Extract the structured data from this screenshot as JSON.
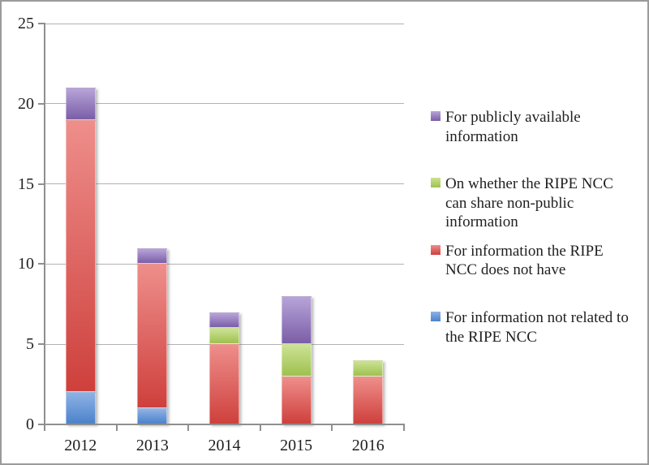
{
  "chart_data": {
    "type": "bar",
    "variant": "stacked-column",
    "title": "",
    "xlabel": "",
    "ylabel": "",
    "categories": [
      "2012",
      "2013",
      "2014",
      "2015",
      "2016"
    ],
    "series": [
      {
        "name": "For information not related to the RIPE NCC",
        "values": [
          2,
          1,
          0,
          0,
          0
        ],
        "color_top": "#8FB2E5",
        "color_bottom": "#4B82CA"
      },
      {
        "name": "For information the RIPE NCC does not have",
        "values": [
          17,
          9,
          5,
          3,
          3
        ],
        "color_top": "#EE8E8B",
        "color_bottom": "#CE403C"
      },
      {
        "name": "On whether the RIPE NCC can share non-public information",
        "values": [
          0,
          0,
          1,
          2,
          1
        ],
        "color_top": "#CCE295",
        "color_bottom": "#9EC14E"
      },
      {
        "name": "For publicly available information",
        "values": [
          2,
          1,
          1,
          3,
          0
        ],
        "color_top": "#B7A4D8",
        "color_bottom": "#7B5EA7"
      }
    ],
    "stack_totals": [
      21,
      11,
      7,
      8,
      4
    ],
    "ylim": [
      0,
      25
    ],
    "y_ticks": [
      0,
      5,
      10,
      15,
      20,
      25
    ],
    "grid": "horizontal",
    "legend_position": "right",
    "legend_order_top_to_bottom": [
      "For publicly available information",
      "On whether the RIPE NCC can share non-public information",
      "For information the RIPE NCC does not have",
      "For information not related to the RIPE NCC"
    ]
  },
  "colors": {
    "background": "#FFFFFF",
    "frame_border": "#9B9B9B",
    "gridline": "#B2B2B2",
    "axis": "#8F8F8F",
    "text": "#1F1F1F"
  }
}
